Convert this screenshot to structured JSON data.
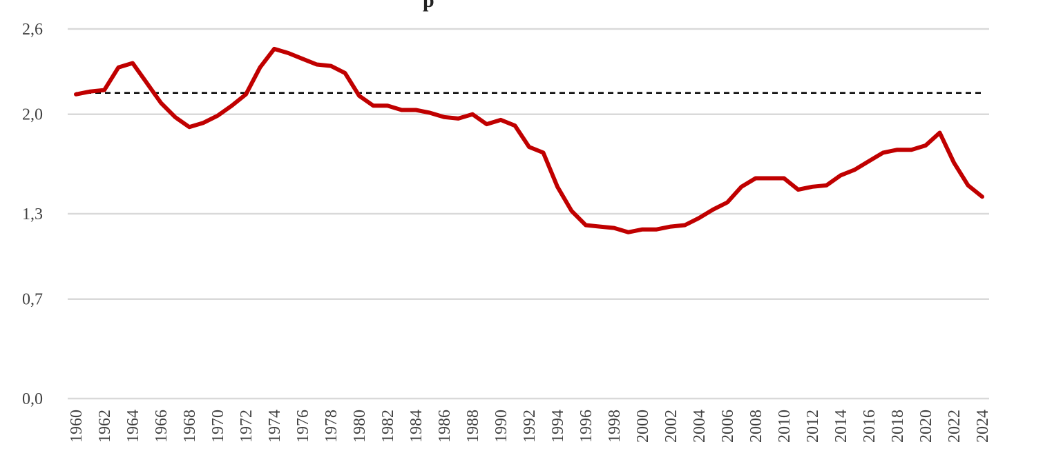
{
  "chart_data": {
    "type": "line",
    "title_fragment": "p",
    "y_ticks": [
      "0,0",
      "0,7",
      "1,3",
      "2,0",
      "2,6"
    ],
    "y_tick_values": [
      0.0,
      0.7,
      1.3,
      2.0,
      2.6
    ],
    "ylim": [
      0.0,
      2.6
    ],
    "grid": true,
    "x_tick_labels": [
      "1960",
      "1962",
      "1964",
      "1966",
      "1968",
      "1970",
      "1972",
      "1974",
      "1976",
      "1978",
      "1980",
      "1982",
      "1984",
      "1986",
      "1988",
      "1990",
      "1992",
      "1994",
      "1996",
      "1998",
      "2000",
      "2002",
      "2004",
      "2006",
      "2008",
      "2010",
      "2012",
      "2014",
      "2016",
      "2018",
      "2020",
      "2022",
      "2024"
    ],
    "x": [
      1960,
      1961,
      1962,
      1963,
      1964,
      1965,
      1966,
      1967,
      1968,
      1969,
      1970,
      1971,
      1972,
      1973,
      1974,
      1975,
      1976,
      1977,
      1978,
      1979,
      1980,
      1981,
      1982,
      1983,
      1984,
      1985,
      1986,
      1987,
      1988,
      1989,
      1990,
      1991,
      1992,
      1993,
      1994,
      1995,
      1996,
      1997,
      1998,
      1999,
      2000,
      2001,
      2002,
      2003,
      2004,
      2005,
      2006,
      2007,
      2008,
      2009,
      2010,
      2011,
      2012,
      2013,
      2014,
      2015,
      2016,
      2017,
      2018,
      2019,
      2020,
      2021,
      2022,
      2023,
      2024
    ],
    "series": [
      {
        "color": "#c00000",
        "values": [
          2.14,
          2.16,
          2.17,
          2.33,
          2.36,
          2.22,
          2.08,
          1.98,
          1.91,
          1.94,
          1.99,
          2.06,
          2.14,
          2.33,
          2.46,
          2.43,
          2.39,
          2.35,
          2.34,
          2.29,
          2.13,
          2.06,
          2.06,
          2.03,
          2.03,
          2.01,
          1.98,
          1.97,
          2.0,
          1.93,
          1.96,
          1.92,
          1.77,
          1.73,
          1.49,
          1.32,
          1.22,
          1.21,
          1.2,
          1.17,
          1.19,
          1.19,
          1.21,
          1.22,
          1.27,
          1.33,
          1.38,
          1.49,
          1.55,
          1.55,
          1.55,
          1.47,
          1.49,
          1.5,
          1.57,
          1.61,
          1.67,
          1.73,
          1.75,
          1.75,
          1.78,
          1.87,
          1.66,
          1.5,
          1.42
        ]
      }
    ],
    "reference_line": {
      "value": 2.15,
      "color": "#000000",
      "style": "dashed"
    }
  }
}
